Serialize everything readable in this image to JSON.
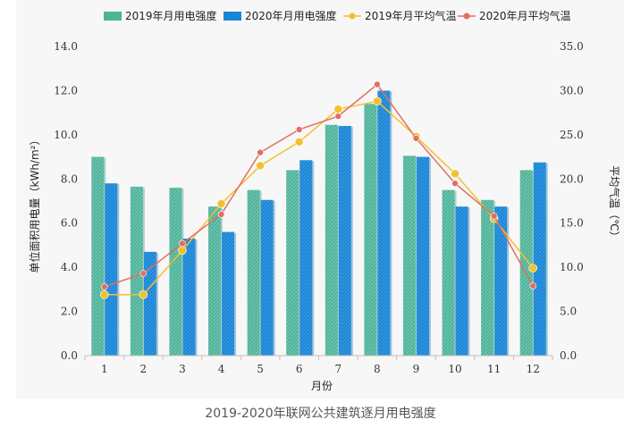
{
  "caption": "2019-2020年联网公共建筑逐月用电强度",
  "colors": {
    "bar2019": "#4db39a",
    "bar2020": "#1a86d6",
    "line2019": "#f2c12e",
    "line2020": "#e07060"
  },
  "chart_data": {
    "type": "bar",
    "xlabel": "月份",
    "ylabel": "单位面积用电量（kWh/m²）",
    "y2label": "平均气温（℃）",
    "categories": [
      "1",
      "2",
      "3",
      "4",
      "5",
      "6",
      "7",
      "8",
      "9",
      "10",
      "11",
      "12"
    ],
    "ylim": [
      0,
      14
    ],
    "yticks": [
      "0.0",
      "2.0",
      "4.0",
      "6.0",
      "8.0",
      "10.0",
      "12.0",
      "14.0"
    ],
    "y2lim": [
      0,
      35
    ],
    "y2ticks": [
      "0.0",
      "5.0",
      "10.0",
      "15.0",
      "20.0",
      "25.0",
      "30.0",
      "35.0"
    ],
    "legend": [
      "2019年月用电强度",
      "2020年月用电强度",
      "2019年月平均气温",
      "2020年月平均气温"
    ],
    "legend_position": "top",
    "series": [
      {
        "name": "2019年月用电强度",
        "type": "bar",
        "axis": "left",
        "values": [
          9.0,
          7.65,
          7.6,
          6.75,
          7.5,
          8.4,
          10.45,
          11.4,
          9.05,
          7.5,
          7.05,
          8.4
        ]
      },
      {
        "name": "2020年月用电强度",
        "type": "bar",
        "axis": "left",
        "values": [
          7.8,
          4.7,
          5.3,
          5.6,
          7.05,
          8.85,
          10.4,
          12.0,
          9.0,
          6.75,
          6.75,
          8.75
        ]
      },
      {
        "name": "2019年月平均气温",
        "type": "line",
        "axis": "right",
        "values": [
          6.9,
          6.9,
          11.9,
          17.2,
          21.5,
          24.2,
          27.9,
          28.8,
          24.8,
          20.6,
          15.5,
          9.9
        ]
      },
      {
        "name": "2020年月平均气温",
        "type": "line",
        "axis": "right",
        "values": [
          7.8,
          9.3,
          12.7,
          16.0,
          23.0,
          25.6,
          27.1,
          30.7,
          24.6,
          19.5,
          15.8,
          7.9
        ]
      }
    ]
  }
}
